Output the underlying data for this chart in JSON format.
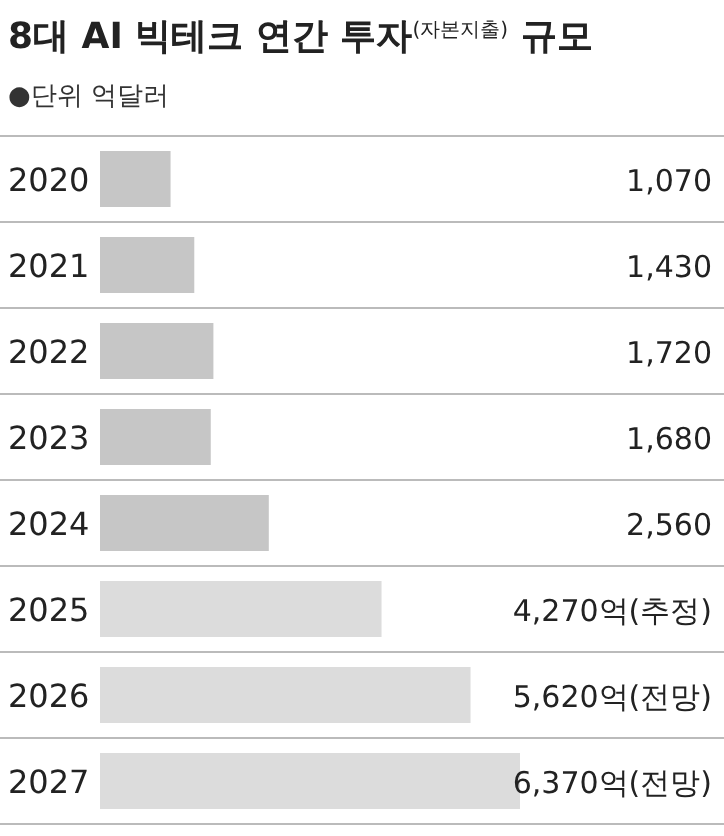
{
  "chart_data": {
    "type": "bar",
    "orientation": "horizontal",
    "relative": false,
    "title": "8대 AI 빅테크 연간 투자$^{(자본지출)}$ 규모",
    "subtitle": "●단위 억달러",
    "categories": [
      "2020",
      "2021",
      "2022",
      "2023",
      "2024",
      "2025",
      "2026",
      "2027"
    ],
    "values": [
      1070,
      1430,
      1720,
      1680,
      2560,
      4270,
      5620,
      6370
    ],
    "value_labels": [
      "1,070",
      "1,430",
      "1,720",
      "1,680",
      "2,560",
      "4,270억(추정)",
      "5,620억(전망)",
      "6,370억(전망)"
    ],
    "colors": [
      "#c6c6c6",
      "#c6c6c6",
      "#c6c6c6",
      "#c6c6c6",
      "#c6c6c6",
      "#dcdcdc",
      "#dcdcdc",
      "#dcdcdc"
    ],
    "grid": "y"
  }
}
